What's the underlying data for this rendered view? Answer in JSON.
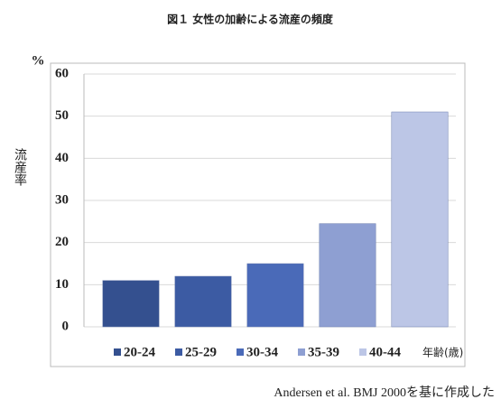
{
  "chart_data": {
    "type": "bar",
    "title": "図１ 女性の加齢による流産の頻度",
    "y_unit": "%",
    "y_label": "流産率",
    "x_label": "年齢(歳)",
    "source": "Andersen et al. BMJ 2000を基に作成した",
    "categories": [
      "20-24",
      "25-29",
      "30-34",
      "35-39",
      "40-44"
    ],
    "values": [
      11,
      12,
      15,
      24.5,
      51
    ],
    "colors": [
      "#34508f",
      "#3c5ba3",
      "#4a6ab8",
      "#8e9fd2",
      "#bcc6e6"
    ],
    "ylim": [
      0,
      60
    ],
    "yticks": [
      0,
      10,
      20,
      30,
      40,
      50,
      60
    ],
    "grid": true
  }
}
